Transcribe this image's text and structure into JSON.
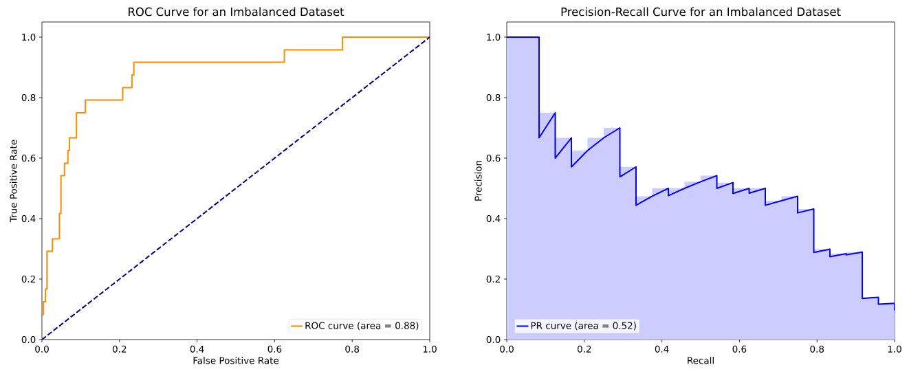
{
  "chart_data": [
    {
      "type": "line",
      "title": "ROC Curve for an Imbalanced Dataset",
      "xlabel": "False Positive Rate",
      "ylabel": "True Positive Rate",
      "xlim": [
        0,
        1
      ],
      "ylim": [
        0,
        1.05
      ],
      "xticks": [
        {
          "value": 0,
          "label": "0.0"
        },
        {
          "value": 0.2,
          "label": "0.2"
        },
        {
          "value": 0.4,
          "label": "0.4"
        },
        {
          "value": 0.6,
          "label": "0.6"
        },
        {
          "value": 0.8,
          "label": "0.8"
        },
        {
          "value": 1,
          "label": "1.0"
        }
      ],
      "yticks": [
        {
          "value": 0,
          "label": "0.0"
        },
        {
          "value": 0.2,
          "label": "0.2"
        },
        {
          "value": 0.4,
          "label": "0.4"
        },
        {
          "value": 0.6,
          "label": "0.6"
        },
        {
          "value": 0.8,
          "label": "0.8"
        },
        {
          "value": 1,
          "label": "1.0"
        }
      ],
      "legend": "bottom right",
      "series": [
        {
          "name": "ROC curve (area = 0.88)",
          "color": "#ff8c00",
          "line_style": "solid",
          "x": [
            0,
            0,
            0.004,
            0.004,
            0.009,
            0.009,
            0.013,
            0.013,
            0.027,
            0.027,
            0.045,
            0.045,
            0.049,
            0.049,
            0.058,
            0.058,
            0.067,
            0.067,
            0.071,
            0.071,
            0.089,
            0.089,
            0.112,
            0.112,
            0.208,
            0.208,
            0.232,
            0.232,
            0.237,
            0.237,
            0.625,
            0.625,
            0.775,
            0.775,
            1
          ],
          "values": [
            0,
            0.083,
            0.083,
            0.125,
            0.125,
            0.167,
            0.167,
            0.292,
            0.292,
            0.333,
            0.333,
            0.417,
            0.417,
            0.542,
            0.542,
            0.583,
            0.583,
            0.625,
            0.625,
            0.667,
            0.667,
            0.75,
            0.75,
            0.792,
            0.792,
            0.833,
            0.833,
            0.875,
            0.875,
            0.917,
            0.917,
            0.958,
            0.958,
            1,
            1
          ]
        },
        {
          "color": "#000080",
          "line_style": "dashed",
          "x": [
            0,
            1
          ],
          "values": [
            0,
            1
          ]
        }
      ]
    },
    {
      "type": "line",
      "title": "Precision-Recall Curve for an Imbalanced Dataset",
      "xlabel": "Recall",
      "ylabel": "Precision",
      "xlim": [
        0,
        1
      ],
      "ylim": [
        0,
        1.05
      ],
      "xticks": [
        {
          "value": 0,
          "label": "0.0"
        },
        {
          "value": 0.2,
          "label": "0.2"
        },
        {
          "value": 0.4,
          "label": "0.4"
        },
        {
          "value": 0.6,
          "label": "0.6"
        },
        {
          "value": 0.8,
          "label": "0.8"
        },
        {
          "value": 1,
          "label": "1.0"
        }
      ],
      "yticks": [
        {
          "value": 0,
          "label": "0.0"
        },
        {
          "value": 0.2,
          "label": "0.2"
        },
        {
          "value": 0.4,
          "label": "0.4"
        },
        {
          "value": 0.6,
          "label": "0.6"
        },
        {
          "value": 0.8,
          "label": "0.8"
        },
        {
          "value": 1,
          "label": "1.0"
        }
      ],
      "legend": "bottom left",
      "series": [
        {
          "color": "#ccccff",
          "type": "area",
          "x": [
            0,
            0.0833,
            0.0833,
            0.125,
            0.125,
            0.1667,
            0.1667,
            0.2083,
            0.2083,
            0.25,
            0.25,
            0.2917,
            0.2917,
            0.3333,
            0.3333,
            0.375,
            0.375,
            0.4583,
            0.4583,
            0.5,
            0.5,
            0.5417,
            0.5417,
            0.5833,
            0.5833,
            0.6667,
            0.6667,
            0.7083,
            0.7083,
            0.75,
            0.75,
            0.7917,
            0.7917,
            0.8333,
            0.8333,
            0.875,
            0.875,
            0.9167,
            0.9167,
            0.9583,
            0.9583,
            1
          ],
          "values": [
            1,
            1,
            0.75,
            0.75,
            0.667,
            0.667,
            0.625,
            0.625,
            0.667,
            0.667,
            0.7,
            0.7,
            0.571,
            0.571,
            0.474,
            0.474,
            0.5,
            0.5,
            0.522,
            0.522,
            0.542,
            0.542,
            0.519,
            0.519,
            0.5,
            0.5,
            0.459,
            0.459,
            0.474,
            0.474,
            0.432,
            0.432,
            0.299,
            0.299,
            0.284,
            0.284,
            0.289,
            0.289,
            0.14,
            0.14,
            0.12,
            0.12
          ]
        },
        {
          "name": "PR curve (area = 0.52)",
          "color": "#0000ff",
          "line_style": "solid",
          "x": [
            0,
            0.0833,
            0.0833,
            0.125,
            0.125,
            0.1667,
            0.1667,
            0.2083,
            0.25,
            0.2917,
            0.2917,
            0.3333,
            0.3333,
            0.375,
            0.4167,
            0.4167,
            0.4583,
            0.5,
            0.5417,
            0.5417,
            0.5833,
            0.5833,
            0.625,
            0.625,
            0.6667,
            0.6667,
            0.7083,
            0.75,
            0.75,
            0.7917,
            0.7917,
            0.8333,
            0.8333,
            0.875,
            0.875,
            0.9167,
            0.9167,
            0.9583,
            0.9583,
            1,
            1
          ],
          "values": [
            1,
            1,
            0.667,
            0.75,
            0.6,
            0.667,
            0.571,
            0.625,
            0.667,
            0.7,
            0.538,
            0.571,
            0.444,
            0.474,
            0.5,
            0.476,
            0.5,
            0.522,
            0.542,
            0.5,
            0.519,
            0.483,
            0.5,
            0.484,
            0.5,
            0.444,
            0.459,
            0.474,
            0.419,
            0.432,
            0.288,
            0.299,
            0.274,
            0.284,
            0.28,
            0.289,
            0.136,
            0.14,
            0.117,
            0.12,
            0.096
          ]
        }
      ]
    }
  ]
}
